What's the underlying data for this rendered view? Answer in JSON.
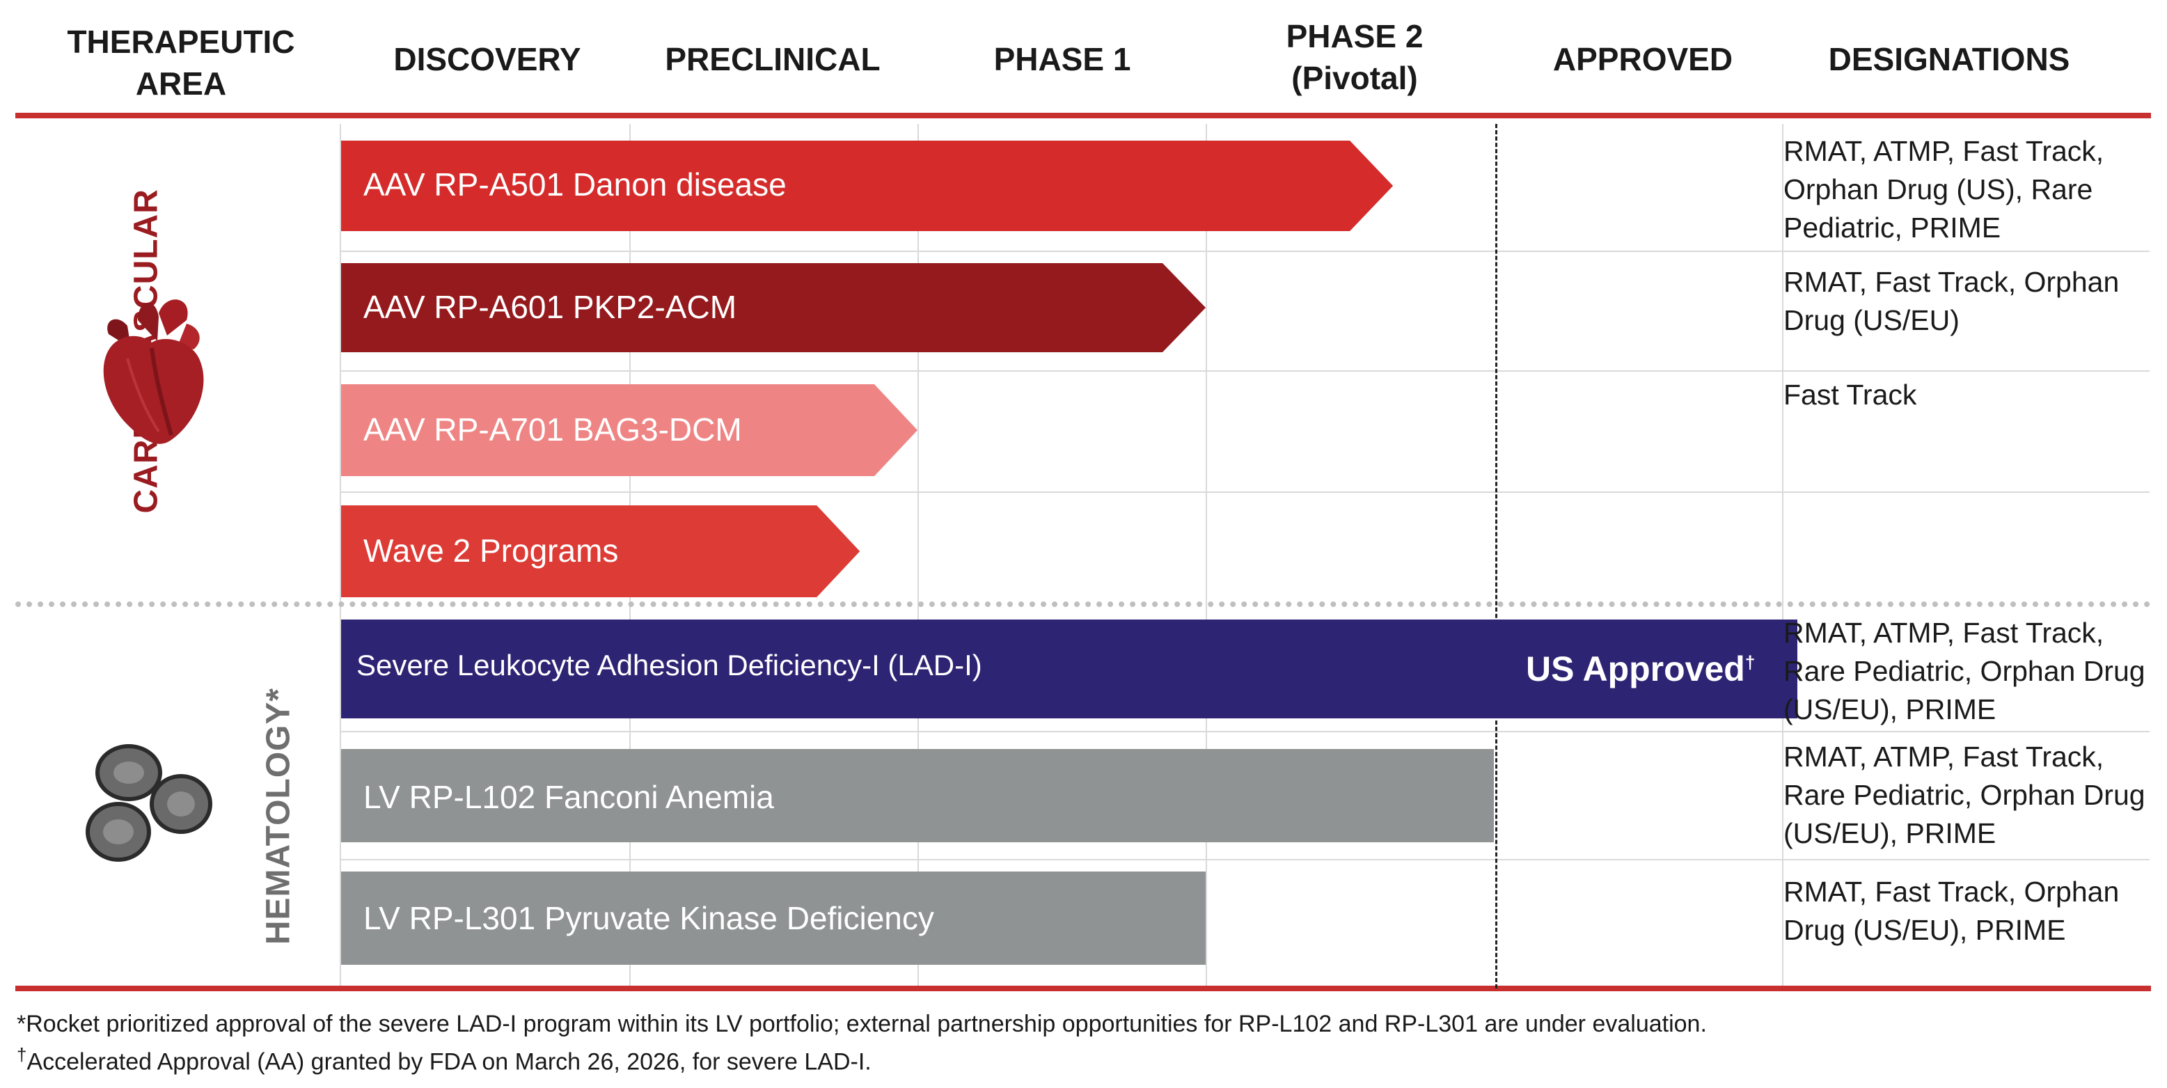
{
  "headers": {
    "therapeutic_area": [
      "THERAPEUTIC",
      "AREA"
    ],
    "discovery": "DISCOVERY",
    "preclinical": "PRECLINICAL",
    "phase1": "PHASE 1",
    "phase2": [
      "PHASE 2",
      "(Pivotal)"
    ],
    "approved": "APPROVED",
    "designations": "DESIGNATIONS"
  },
  "areas": {
    "cardiovascular": "CARDIOVASCULAR",
    "hematology": "HEMATOLOGY*"
  },
  "chart_data": {
    "type": "bar",
    "stages": [
      "DISCOVERY",
      "PRECLINICAL",
      "PHASE 1",
      "PHASE 2 (Pivotal)",
      "APPROVED"
    ],
    "programs": [
      {
        "label": "AAV RP-A501 Danon disease",
        "area": "CARDIOVASCULAR",
        "progress": 3.65,
        "color": "#d52b2b",
        "designations": [
          "RMAT, ATMP, Fast Track,",
          "Orphan Drug (US), Rare",
          "Pediatric, PRIME"
        ]
      },
      {
        "label": "AAV RP-A601 PKP2-ACM",
        "area": "CARDIOVASCULAR",
        "progress": 3.0,
        "color": "#951a1e",
        "designations": [
          "RMAT, Fast Track, Orphan",
          "Drug (US/EU)"
        ]
      },
      {
        "label": "AAV RP-A701 BAG3-DCM",
        "area": "CARDIOVASCULAR",
        "progress": 2.0,
        "color": "#ee8584",
        "designations": [
          "Fast Track"
        ]
      },
      {
        "label": "Wave 2 Programs",
        "area": "CARDIOVASCULAR",
        "progress": 1.8,
        "color": "#dd3b35",
        "designations": []
      },
      {
        "label": "Severe Leukocyte Adhesion Deficiency-I (LAD-I)",
        "area": "HEMATOLOGY*",
        "progress": 5.0,
        "color": "#2e2474",
        "status": "US Approved",
        "status_mark": "†",
        "designations": [
          "RMAT, ATMP, Fast Track,",
          "Rare Pediatric, Orphan Drug",
          "(US/EU), PRIME"
        ]
      },
      {
        "label": "LV RP-L102 Fanconi Anemia",
        "area": "HEMATOLOGY*",
        "progress": 4.0,
        "color": "#909393",
        "designations": [
          "RMAT, ATMP, Fast Track,",
          "Rare Pediatric, Orphan Drug",
          "(US/EU), PRIME"
        ]
      },
      {
        "label": "LV RP-L301 Pyruvate Kinase Deficiency",
        "area": "HEMATOLOGY*",
        "progress": 3.0,
        "color": "#909393",
        "designations": [
          "RMAT, Fast Track, Orphan",
          "Drug (US/EU), PRIME"
        ]
      }
    ]
  },
  "footnotes": {
    "note1": "*Rocket prioritized approval of the severe LAD-I program within its LV portfolio; external partnership opportunities for RP-L102 and RP-L301 are under evaluation.",
    "note2_mark": "†",
    "note2": "Accelerated Approval (AA) granted by FDA on March 26, 2026, for severe LAD-I."
  },
  "icons": {
    "cardiovascular": "heart-icon",
    "hematology": "blood-cells-icon"
  },
  "colors": {
    "accent_red": "#c8302f",
    "cardiovascular_label": "#9a1b20",
    "hematology_label": "#6f6f6f"
  }
}
